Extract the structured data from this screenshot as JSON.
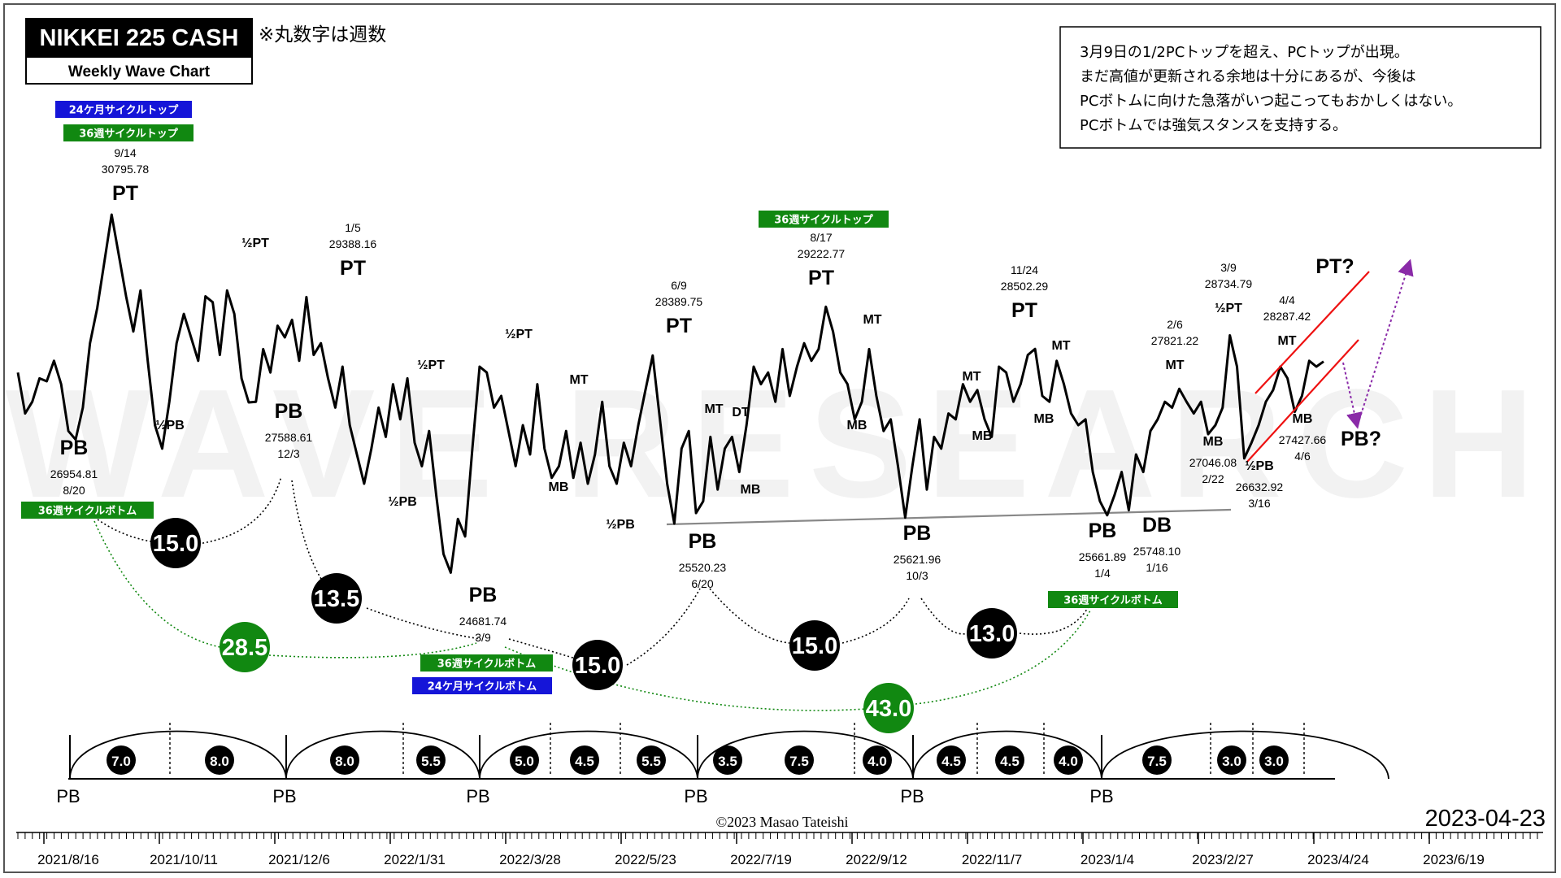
{
  "title_box": {
    "title": "NIKKEI 225 CASH",
    "subtitle": "Weekly Wave Chart"
  },
  "note_top": "※丸数字は週数",
  "watermark": "WAVE RESEARCH",
  "commentary": [
    "3月9日の1/2PCトップを超え、PCトップが出現。",
    "まだ高値が更新される余地は十分にあるが、今後は",
    "PCボトムに向けた急落がいつ起こってもおかしくはない。",
    "PCボトムでは強気スタンスを支持する。"
  ],
  "copyright": "©2023 Masao Tateishi",
  "date_stamp": "2023-04-23",
  "colors": {
    "green": "#118811",
    "blue": "#1515d8",
    "black": "#000000",
    "red": "#ee1111",
    "purple": "#8a2aa8",
    "support": "#888888"
  },
  "chart_data": {
    "type": "line",
    "title": "NIKKEI 225 CASH",
    "subtitle": "Weekly Wave Chart",
    "x_ticks": [
      "2021/8/16",
      "2021/10/11",
      "2021/12/6",
      "2022/1/31",
      "2022/3/28",
      "2022/5/23",
      "2022/7/19",
      "2022/9/12",
      "2022/11/7",
      "2023/1/4",
      "2023/2/27",
      "2023/4/24",
      "2023/6/19"
    ],
    "series": [
      {
        "values": [
          28100,
          27400,
          27600,
          28000,
          27950,
          28300,
          27900,
          27100,
          26954.81,
          27500,
          28600,
          29200,
          30000,
          30795.78,
          30100,
          29400,
          28800,
          29500,
          28300,
          27200,
          26800,
          27600,
          28600,
          29100,
          28700,
          28300,
          29400,
          29300,
          28400,
          29500,
          29100,
          28000,
          27588.61,
          27600,
          28500,
          28100,
          28900,
          28700,
          29000,
          28300,
          29388.16,
          28400,
          28600,
          28000,
          27500,
          28200,
          27200,
          26700,
          26200,
          26800,
          27500,
          27000,
          27900,
          27300,
          28000,
          26900,
          26500,
          27100,
          26000,
          25000,
          24681.74,
          25600,
          25300,
          26800,
          28200,
          28100,
          27500,
          27700,
          27100,
          26500,
          27200,
          26700,
          27900,
          26800,
          26300,
          26500,
          27100,
          26300,
          26900,
          26200,
          26700,
          27600,
          26500,
          26200,
          26900,
          26500,
          27200,
          27800,
          28389.75,
          27300,
          26200,
          25520.23,
          26800,
          27100,
          25700,
          25900,
          27000,
          26100,
          26800,
          27000,
          26400,
          27200,
          28200,
          27900,
          28100,
          27600,
          28500,
          27700,
          28200,
          28600,
          28300,
          28500,
          29222.77,
          28800,
          28100,
          27900,
          27300,
          27600,
          28500,
          27700,
          27100,
          27300,
          26500,
          25621.96,
          26500,
          27300,
          26100,
          27000,
          26800,
          27400,
          27300,
          27900,
          27600,
          27800,
          27300,
          27000,
          28200,
          28100,
          27600,
          27900,
          28400,
          28502.29,
          27700,
          27600,
          28300,
          27900,
          27400,
          27200,
          27300,
          26400,
          25900,
          25661.89,
          26000,
          26400,
          25748.1,
          26700,
          26400,
          27100,
          27300,
          27600,
          27500,
          27821.22,
          27600,
          27400,
          27600,
          27046.08,
          27200,
          27500,
          28734.79,
          28200,
          26632.92,
          26900,
          27200,
          27600,
          27800,
          28200,
          28000,
          27427.66,
          27700,
          28300,
          28200,
          28287.42
        ]
      }
    ]
  },
  "pivot_labels": [
    {
      "type": "PT",
      "date": "9/14",
      "value": "30795.78"
    },
    {
      "type": "PB",
      "date": "8/20",
      "value": "26954.81"
    },
    {
      "type": "½PT"
    },
    {
      "type": "½PB"
    },
    {
      "type": "PB",
      "date": "12/3",
      "value": "27588.61"
    },
    {
      "type": "PT",
      "date": "1/5",
      "value": "29388.16"
    },
    {
      "type": "½PT"
    },
    {
      "type": "½PB"
    },
    {
      "type": "PB",
      "date": "3/9",
      "value": "24681.74"
    },
    {
      "type": "½PT"
    },
    {
      "type": "MT"
    },
    {
      "type": "MB"
    },
    {
      "type": "½PB"
    },
    {
      "type": "PT",
      "date": "6/9",
      "value": "28389.75"
    },
    {
      "type": "PB",
      "date": "6/20",
      "value": "25520.23"
    },
    {
      "type": "MT"
    },
    {
      "type": "DT"
    },
    {
      "type": "MB"
    },
    {
      "type": "PT",
      "date": "8/17",
      "value": "29222.77"
    },
    {
      "type": "MT"
    },
    {
      "type": "MB"
    },
    {
      "type": "PB",
      "date": "10/3",
      "value": "25621.96"
    },
    {
      "type": "MT"
    },
    {
      "type": "MB"
    },
    {
      "type": "PT",
      "date": "11/24",
      "value": "28502.29"
    },
    {
      "type": "MT"
    },
    {
      "type": "MB"
    },
    {
      "type": "PB",
      "date": "1/4",
      "value": "25661.89"
    },
    {
      "type": "DB",
      "date": "1/16",
      "value": "25748.10"
    },
    {
      "type": "MT",
      "date": "2/6",
      "value": "27821.22"
    },
    {
      "type": "MB",
      "date": "2/22",
      "value": "27046.08"
    },
    {
      "type": "½PT",
      "date": "3/9",
      "value": "28734.79"
    },
    {
      "type": "½PB",
      "date": "3/16",
      "value": "26632.92"
    },
    {
      "type": "MT",
      "date": "4/4",
      "value": "28287.42"
    },
    {
      "type": "MB",
      "date": "4/6",
      "value": "27427.66"
    },
    {
      "type": "PT?"
    },
    {
      "type": "PB?"
    }
  ],
  "cycle_tags": [
    {
      "text": "24ケ月サイクルトップ",
      "color": "blue"
    },
    {
      "text": "36週サイクルトップ",
      "color": "green"
    },
    {
      "text": "36週サイクルトップ",
      "color": "green"
    },
    {
      "text": "36週サイクルボトム",
      "color": "green"
    },
    {
      "text": "36週サイクルボトム",
      "color": "green"
    },
    {
      "text": "24ケ月サイクルボトム",
      "color": "blue"
    },
    {
      "text": "36週サイクルボトム",
      "color": "green"
    }
  ],
  "week_counts": [
    {
      "value": "15.0",
      "color": "black"
    },
    {
      "value": "13.5",
      "color": "black"
    },
    {
      "value": "28.5",
      "color": "green"
    },
    {
      "value": "15.0",
      "color": "black"
    },
    {
      "value": "15.0",
      "color": "black"
    },
    {
      "value": "13.0",
      "color": "black"
    },
    {
      "value": "43.0",
      "color": "green"
    }
  ],
  "bottom_cycles": {
    "labels": [
      "PB",
      "PB",
      "PB",
      "PB",
      "PB",
      "PB"
    ],
    "counts": [
      "7.0",
      "8.0",
      "8.0",
      "5.5",
      "5.0",
      "4.5",
      "5.5",
      "3.5",
      "7.5",
      "4.0",
      "4.5",
      "4.5",
      "4.0",
      "7.5",
      "3.0",
      "3.0"
    ]
  }
}
